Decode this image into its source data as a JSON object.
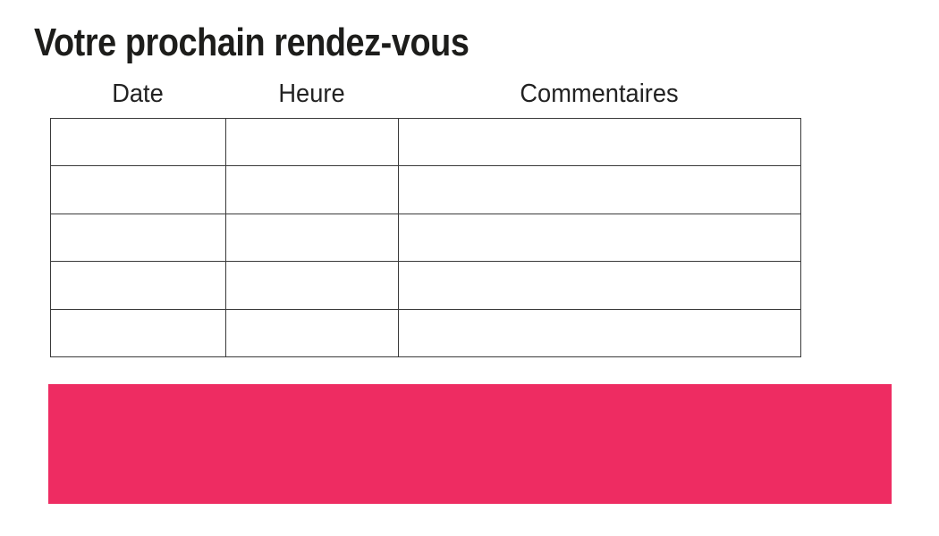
{
  "page": {
    "title": "Votre prochain rendez-vous"
  },
  "table": {
    "headers": [
      "Date",
      "Heure",
      "Commentaires"
    ],
    "rows": [
      [
        "",
        "",
        ""
      ],
      [
        "",
        "",
        ""
      ],
      [
        "",
        "",
        ""
      ],
      [
        "",
        "",
        ""
      ],
      [
        "",
        "",
        ""
      ]
    ]
  },
  "colors": {
    "accent_pink": "#EE2C62",
    "table_border": "#3A3A3A",
    "text": "#1D1D1B"
  }
}
